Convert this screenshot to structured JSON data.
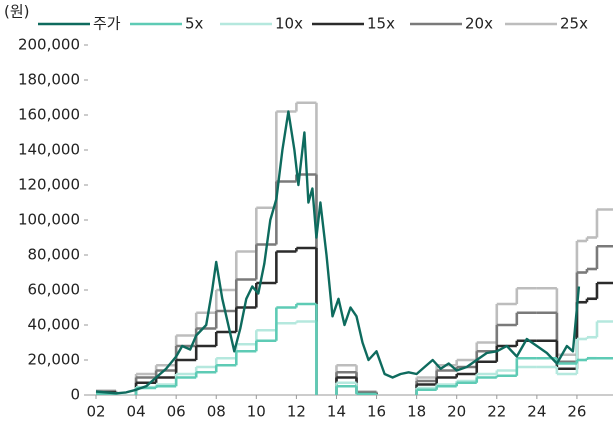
{
  "chart_data": {
    "type": "line",
    "y_unit": "(원)",
    "xlim": [
      2001.6,
      2027.8
    ],
    "ylim": [
      0,
      200000
    ],
    "xticks": [
      {
        "value": 2002,
        "label": "02"
      },
      {
        "value": 2004,
        "label": "04"
      },
      {
        "value": 2006,
        "label": "06"
      },
      {
        "value": 2008,
        "label": "08"
      },
      {
        "value": 2010,
        "label": "10"
      },
      {
        "value": 2012,
        "label": "12"
      },
      {
        "value": 2014,
        "label": "14"
      },
      {
        "value": 2016,
        "label": "16"
      },
      {
        "value": 2018,
        "label": "18"
      },
      {
        "value": 2020,
        "label": "20"
      },
      {
        "value": 2022,
        "label": "22"
      },
      {
        "value": 2024,
        "label": "24"
      },
      {
        "value": 2026,
        "label": "26"
      }
    ],
    "yticks": [
      0,
      {
        "value": 20000,
        "label": "20,000"
      },
      {
        "value": 40000,
        "label": "40,000"
      },
      {
        "value": 60000,
        "label": "60,000"
      },
      {
        "value": 80000,
        "label": "80,000"
      },
      {
        "value": 100000,
        "label": "100,000"
      },
      {
        "value": 120000,
        "label": "120,000"
      },
      {
        "value": 140000,
        "label": "140,000"
      },
      {
        "value": 160000,
        "label": "160,000"
      },
      {
        "value": 180000,
        "label": "180,000"
      },
      {
        "value": 200000,
        "label": "200,000"
      }
    ],
    "series": [
      {
        "name": "주가",
        "color": "#0e6b5e",
        "step": false,
        "x": [
          2002,
          2002.5,
          2003,
          2003.5,
          2004,
          2004.5,
          2005,
          2005.5,
          2006,
          2006.3,
          2006.7,
          2007,
          2007.5,
          2007.8,
          2008,
          2008.3,
          2008.6,
          2008.9,
          2009.2,
          2009.5,
          2009.8,
          2010.1,
          2010.4,
          2010.7,
          2011,
          2011.3,
          2011.6,
          2011.9,
          2012.1,
          2012.4,
          2012.6,
          2012.8,
          2013,
          2013.2,
          2013.5,
          2013.8,
          2014.1,
          2014.4,
          2014.7,
          2015,
          2015.3,
          2015.6,
          2016,
          2016.4,
          2016.8,
          2017.2,
          2017.6,
          2018,
          2018.4,
          2018.8,
          2019.2,
          2019.6,
          2020,
          2020.5,
          2021,
          2021.5,
          2022,
          2022.5,
          2023,
          2023.5,
          2024,
          2024.5,
          2025,
          2025.5,
          2025.8,
          2026.1
        ],
        "values": [
          2000,
          1500,
          1000,
          1500,
          3000,
          5000,
          10000,
          15000,
          22000,
          28000,
          26000,
          34000,
          40000,
          60000,
          76000,
          55000,
          40000,
          25000,
          38000,
          55000,
          62000,
          58000,
          75000,
          100000,
          112000,
          140000,
          162000,
          140000,
          120000,
          150000,
          110000,
          118000,
          90000,
          110000,
          80000,
          45000,
          55000,
          40000,
          50000,
          45000,
          30000,
          20000,
          25000,
          12000,
          10000,
          12000,
          13000,
          12000,
          16000,
          20000,
          15000,
          18000,
          14000,
          16000,
          20000,
          24000,
          25000,
          28000,
          22000,
          32000,
          28000,
          24000,
          18000,
          28000,
          25000,
          62000
        ]
      },
      {
        "name": "5x",
        "color": "#5ecbb5",
        "step": true,
        "x": [
          2002,
          2003,
          2004,
          2005,
          2006,
          2007,
          2008,
          2009,
          2010,
          2011,
          2012,
          2013,
          2014,
          2015,
          2016,
          2017,
          2018,
          2019,
          2020,
          2021,
          2022,
          2023,
          2024,
          2025,
          2026,
          2026.5,
          2027
        ],
        "values": [
          800,
          -600,
          4000,
          5000,
          10000,
          13000,
          17000,
          25000,
          31000,
          50000,
          52000,
          -6000,
          5000,
          500,
          -1500,
          -1500,
          3000,
          5000,
          7000,
          10000,
          11000,
          21000,
          21000,
          18000,
          20000,
          21000,
          21000
        ]
      },
      {
        "name": "10x",
        "color": "#b5e8de",
        "step": true,
        "x": [
          2002,
          2003,
          2004,
          2005,
          2006,
          2007,
          2008,
          2009,
          2010,
          2011,
          2012,
          2013,
          2014,
          2015,
          2016,
          2017,
          2018,
          2019,
          2020,
          2021,
          2022,
          2023,
          2024,
          2025,
          2026,
          2026.5,
          2027
        ],
        "values": [
          1000,
          -800,
          4500,
          6000,
          12000,
          16000,
          21000,
          29000,
          37000,
          41000,
          42000,
          -8000,
          7000,
          700,
          -2000,
          -2000,
          4000,
          6000,
          8000,
          12000,
          14000,
          16000,
          16000,
          12000,
          32000,
          33000,
          42000
        ]
      },
      {
        "name": "15x",
        "color": "#2b2b2b",
        "step": true,
        "x": [
          2002,
          2003,
          2004,
          2005,
          2006,
          2007,
          2008,
          2009,
          2010,
          2011,
          2012,
          2013,
          2014,
          2015,
          2016,
          2017,
          2018,
          2019,
          2020,
          2021,
          2022,
          2023,
          2024,
          2025,
          2026,
          2026.5,
          2027
        ],
        "values": [
          1500,
          -1200,
          7000,
          10000,
          20000,
          28000,
          36000,
          50000,
          64000,
          82000,
          84000,
          -12000,
          10000,
          1000,
          -3000,
          -3000,
          6000,
          10000,
          12000,
          19000,
          28000,
          31000,
          31000,
          15000,
          53000,
          55000,
          64000
        ]
      },
      {
        "name": "20x",
        "color": "#7a7a7a",
        "step": true,
        "x": [
          2002,
          2003,
          2004,
          2005,
          2006,
          2007,
          2008,
          2009,
          2010,
          2011,
          2012,
          2013,
          2014,
          2015,
          2016,
          2017,
          2018,
          2019,
          2020,
          2021,
          2022,
          2023,
          2024,
          2025,
          2026,
          2026.5,
          2027
        ],
        "values": [
          2000,
          -1600,
          10000,
          14000,
          28000,
          38000,
          48000,
          66000,
          86000,
          122000,
          126000,
          -16000,
          13000,
          1500,
          -4000,
          -4000,
          8000,
          14000,
          16000,
          25000,
          40000,
          47000,
          47000,
          19000,
          70000,
          72000,
          85000
        ]
      },
      {
        "name": "25x",
        "color": "#bdbdbd",
        "step": true,
        "x": [
          2002,
          2003,
          2004,
          2005,
          2006,
          2007,
          2008,
          2009,
          2010,
          2011,
          2012,
          2013,
          2014,
          2015,
          2016,
          2017,
          2018,
          2019,
          2020,
          2021,
          2022,
          2023,
          2024,
          2025,
          2026,
          2026.5,
          2027
        ],
        "values": [
          2500,
          -2000,
          12000,
          17000,
          34000,
          47000,
          60000,
          82000,
          107000,
          162000,
          167000,
          -20000,
          17000,
          2000,
          -5000,
          -5000,
          10000,
          17000,
          20000,
          30000,
          52000,
          61000,
          61000,
          23000,
          88000,
          90000,
          106000
        ]
      }
    ]
  }
}
